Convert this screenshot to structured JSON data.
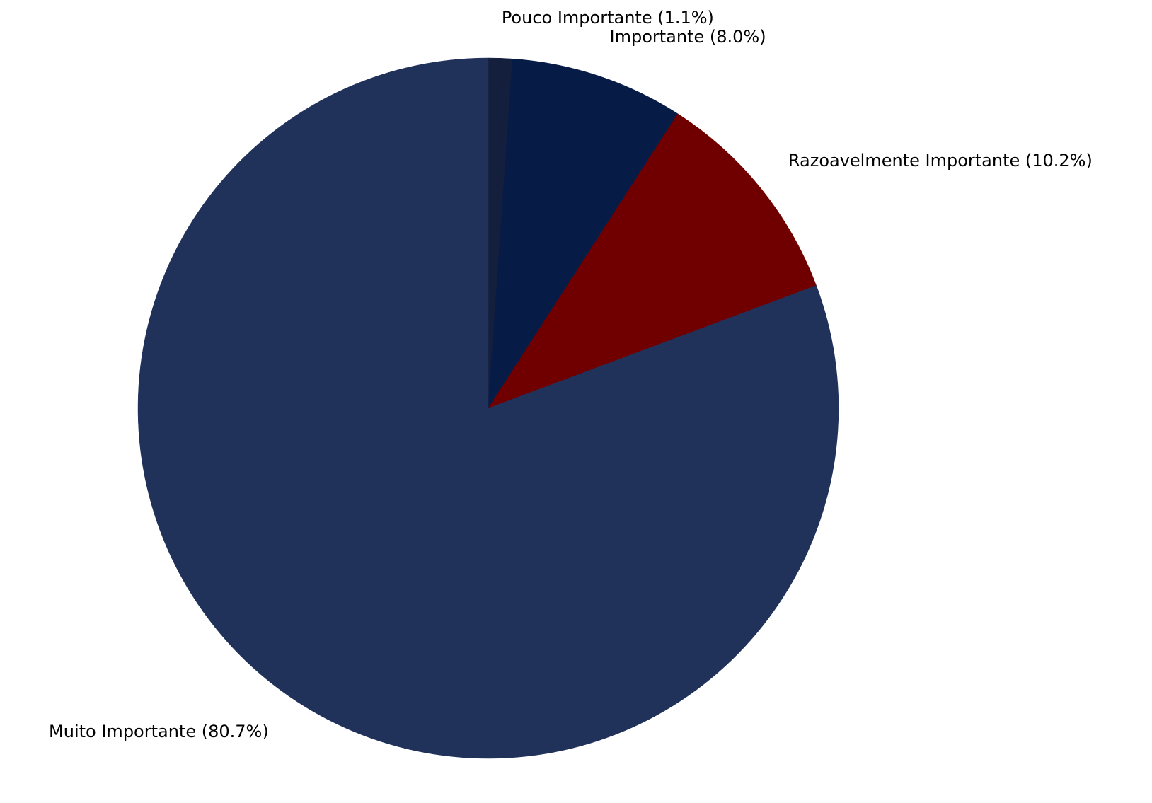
{
  "chart_data": {
    "type": "pie",
    "start_angle_deg": 90,
    "direction": "clockwise",
    "slices": [
      {
        "label": "Pouco Importante (1.1%)",
        "value": 1.1,
        "color": "#141f3d"
      },
      {
        "label": "Importante (8.0%)",
        "value": 8.0,
        "color": "#071b47"
      },
      {
        "label": "Razoavelmente Importante (10.2%)",
        "value": 10.2,
        "color": "#700000"
      },
      {
        "label": "Muito Importante (80.7%)",
        "value": 80.7,
        "color": "#20315a"
      }
    ]
  }
}
